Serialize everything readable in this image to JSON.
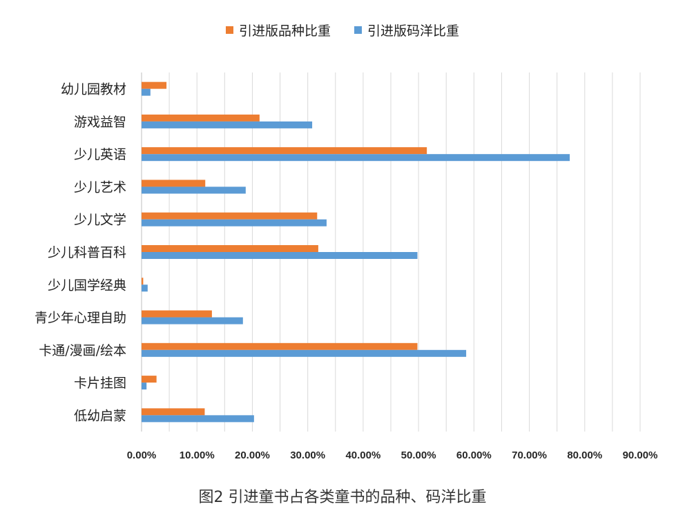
{
  "chart_data": {
    "type": "bar",
    "orientation": "horizontal",
    "caption": "图2 引进童书占各类童书的品种、码洋比重",
    "categories": [
      "幼儿园教材",
      "游戏益智",
      "少儿英语",
      "少儿艺术",
      "少儿文学",
      "少儿科普百科",
      "少儿国学经典",
      "青少年心理自助",
      "卡通/漫画/绘本",
      "卡片挂图",
      "低幼启蒙"
    ],
    "series": [
      {
        "name": "引进版品种比重",
        "color": "#ED7D31",
        "values": [
          4.5,
          21.3,
          51.5,
          11.5,
          31.7,
          31.9,
          0.3,
          12.7,
          49.8,
          2.7,
          11.4
        ]
      },
      {
        "name": "引进版码洋比重",
        "color": "#5B9BD5",
        "values": [
          1.6,
          30.8,
          77.3,
          18.8,
          33.4,
          49.8,
          1.1,
          18.3,
          58.6,
          0.9,
          20.3
        ]
      }
    ],
    "xlim": [
      0,
      90
    ],
    "xticks": [
      "0.00%",
      "10.00%",
      "20.00%",
      "30.00%",
      "40.00%",
      "50.00%",
      "60.00%",
      "70.00%",
      "80.00%",
      "90.00%"
    ],
    "grid": true,
    "legend_position": "top"
  }
}
